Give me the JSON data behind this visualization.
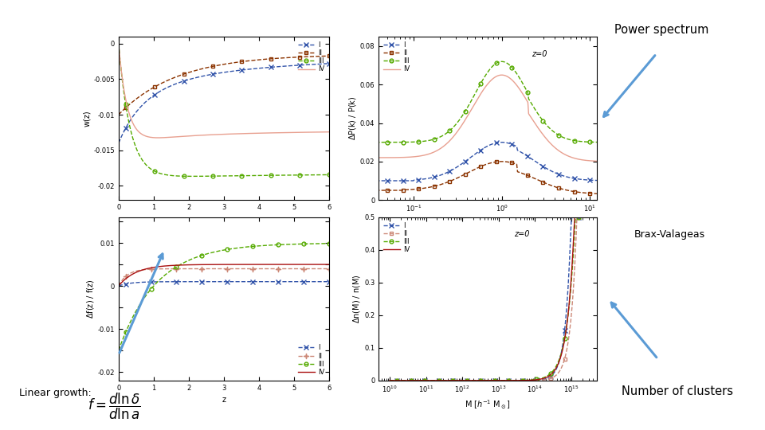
{
  "title_power_spectrum": "Power spectrum",
  "title_brax": "Brax-Valageas",
  "title_linear": "Linear growth:",
  "title_clusters": "Number of clusters",
  "arrow_color": "#5b9bd5",
  "text_color": "#000000",
  "bg_color": "#ffffff",
  "colors_I": "#3355aa",
  "colors_II_top": "#8B3300",
  "colors_III": "#55aa00",
  "colors_IV_top": "#e8a090",
  "colors_II_bot": "#cc8877",
  "colors_IV_bot": "#aa1111"
}
